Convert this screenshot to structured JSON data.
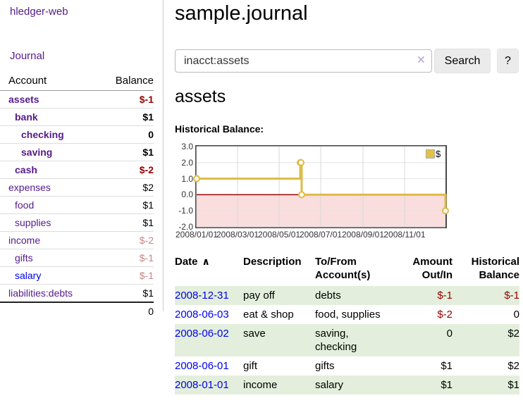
{
  "sidebar": {
    "app_title": "hledger-web",
    "nav": {
      "journal_label": "Journal"
    },
    "accounts_table": {
      "headers": {
        "account": "Account",
        "balance": "Balance"
      },
      "rows": [
        {
          "name": "assets",
          "balance": "$-1",
          "depth": 0,
          "inacct": true
        },
        {
          "name": "bank",
          "balance": "$1",
          "depth": 1,
          "inacct": true
        },
        {
          "name": "checking",
          "balance": "0",
          "depth": 2,
          "inacct": true
        },
        {
          "name": "saving",
          "balance": "$1",
          "depth": 2,
          "inacct": true
        },
        {
          "name": "cash",
          "balance": "$-2",
          "depth": 1,
          "inacct": true
        },
        {
          "name": "expenses",
          "balance": "$2",
          "depth": 0
        },
        {
          "name": "food",
          "balance": "$1",
          "depth": 1
        },
        {
          "name": "supplies",
          "balance": "$1",
          "depth": 1
        },
        {
          "name": "income",
          "balance": "$-2",
          "depth": 0
        },
        {
          "name": "gifts",
          "balance": "$-1",
          "depth": 1
        },
        {
          "name": "salary",
          "balance": "$-1",
          "depth": 1,
          "unvisited": true
        },
        {
          "name": "liabilities:debts",
          "balance": "$1",
          "depth": 0
        }
      ],
      "total": "0"
    }
  },
  "header": {
    "title": "sample.journal"
  },
  "search": {
    "value": "inacct:assets",
    "clear_icon": "×",
    "button_label": "Search",
    "help_label": "?"
  },
  "account_view": {
    "title": "assets",
    "chart_heading": "Historical Balance:"
  },
  "chart_data": {
    "type": "line",
    "step": true,
    "title": "Historical Balance:",
    "series": [
      {
        "name": "$",
        "points": [
          [
            "2008-01-01",
            1.0
          ],
          [
            "2008-06-01",
            2.0
          ],
          [
            "2008-06-02",
            2.0
          ],
          [
            "2008-06-03",
            0.0
          ],
          [
            "2008-12-31",
            -1.0
          ]
        ]
      }
    ],
    "x_range": [
      "2008-01-01",
      "2008-12-31"
    ],
    "x_tick_labels": [
      "2008/01/01",
      "2008/03/01",
      "2008/05/01",
      "2008/07/01",
      "2008/09/01",
      "2008/11/01"
    ],
    "y_ticks": [
      "3.0",
      "2.0",
      "1.0",
      "0.0",
      "-1.0",
      "-2.0"
    ],
    "ylim": [
      -2,
      3
    ],
    "grid": true,
    "legend_position": "top-right"
  },
  "register": {
    "columns": [
      "Date",
      "Description",
      "To/From Account(s)",
      "Amount Out/In",
      "Historical Balance"
    ],
    "sort_indicator": "∧",
    "rows": [
      {
        "date": "2008-12-31",
        "description": "pay off",
        "accounts": "debts",
        "amount": "$-1",
        "balance": "$-1"
      },
      {
        "date": "2008-06-03",
        "description": "eat & shop",
        "accounts": "food, supplies",
        "amount": "$-2",
        "balance": "0"
      },
      {
        "date": "2008-06-02",
        "description": "save",
        "accounts": "saving, checking",
        "amount": "0",
        "balance": "$2"
      },
      {
        "date": "2008-06-01",
        "description": "gift",
        "accounts": "gifts",
        "amount": "$1",
        "balance": "$2"
      },
      {
        "date": "2008-01-01",
        "description": "income",
        "accounts": "salary",
        "amount": "$1",
        "balance": "$1"
      }
    ]
  },
  "colors": {
    "link_purple": "#551a8b",
    "link_blue": "#0000ee",
    "negative_red": "#990000",
    "negative_light": "#c98585",
    "stripe_green": "#e3efdc",
    "chart_line": "#e0ba45",
    "chart_negative_region": "#fadddd",
    "chart_zero_line": "#990000",
    "legend_swatch": "#e6c148"
  }
}
